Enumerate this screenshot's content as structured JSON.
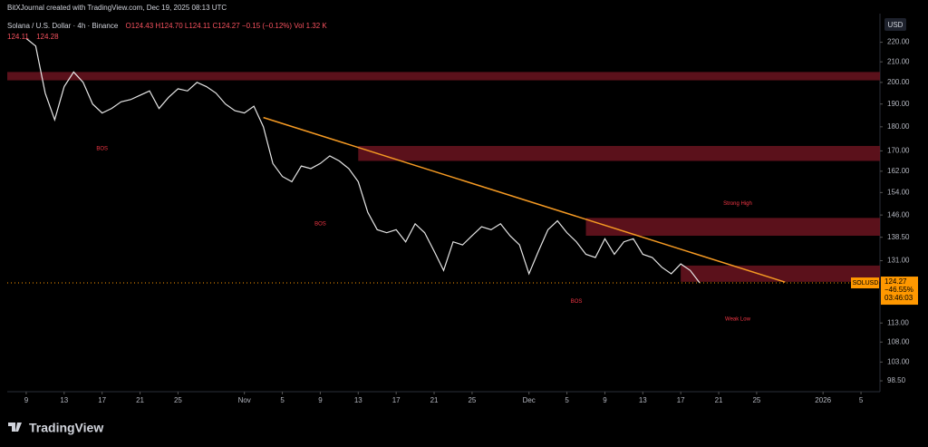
{
  "header": {
    "credit": "BitXJournal created with TradingView.com, Dec 19, 2025 08:13 UTC",
    "symbol": "Solana / U.S. Dollar · 4h · Binance",
    "ohlc": "O124.43 H124.70 L124.11 C124.27 −0.15 (−0.12%) Vol 1.32 K",
    "bid": "124.11",
    "ask": "124.28"
  },
  "footer": {
    "brand": "TradingView"
  },
  "chart_data": {
    "type": "line",
    "currency": "USD",
    "log_scale": true,
    "color": "#e6e6e6",
    "x": [
      0,
      1,
      2,
      3,
      4,
      5,
      6,
      7,
      8,
      9,
      10,
      11,
      12,
      13,
      14,
      15,
      16,
      17,
      18,
      19,
      20,
      21,
      22,
      23,
      24,
      25,
      26,
      27,
      28,
      29,
      30,
      31,
      32,
      33,
      34,
      35,
      36,
      37,
      38,
      39,
      40,
      41,
      42,
      43,
      44,
      45,
      46,
      47,
      48,
      49,
      50,
      51,
      52,
      53,
      54,
      55,
      56,
      57,
      58,
      59,
      60,
      61,
      62,
      63,
      64,
      65,
      66,
      67,
      68,
      69,
      70,
      71
    ],
    "values": [
      222,
      218,
      195,
      183,
      198,
      205,
      200,
      190,
      186,
      188,
      191,
      192,
      194,
      196,
      188,
      193,
      197,
      196,
      200,
      198,
      195,
      190,
      187,
      186,
      189,
      180,
      165,
      160,
      158,
      164,
      163,
      165,
      168,
      166,
      163,
      158,
      147,
      141,
      140,
      141,
      137,
      143,
      140,
      134,
      128,
      137,
      136,
      139,
      142,
      141,
      143,
      139,
      136,
      127,
      134,
      141,
      144,
      140,
      137,
      133,
      132,
      138,
      133,
      137,
      138,
      133,
      132,
      129,
      127,
      130,
      128,
      124.27
    ],
    "xlim": [
      -2,
      90
    ],
    "ylim": [
      96,
      237
    ],
    "xticks": [
      {
        "value": 0,
        "label": "9"
      },
      {
        "value": 4,
        "label": "13"
      },
      {
        "value": 8,
        "label": "17"
      },
      {
        "value": 12,
        "label": "21"
      },
      {
        "value": 16,
        "label": "25"
      },
      {
        "value": 23,
        "label": "Nov"
      },
      {
        "value": 27,
        "label": "5"
      },
      {
        "value": 31,
        "label": "9"
      },
      {
        "value": 35,
        "label": "13"
      },
      {
        "value": 39,
        "label": "17"
      },
      {
        "value": 43,
        "label": "21"
      },
      {
        "value": 47,
        "label": "25"
      },
      {
        "value": 53,
        "label": "Dec"
      },
      {
        "value": 57,
        "label": "5"
      },
      {
        "value": 61,
        "label": "9"
      },
      {
        "value": 65,
        "label": "13"
      },
      {
        "value": 69,
        "label": "17"
      },
      {
        "value": 73,
        "label": "21"
      },
      {
        "value": 77,
        "label": "25"
      },
      {
        "value": 84,
        "label": "2026"
      },
      {
        "value": 88,
        "label": "5"
      }
    ],
    "yticks": [
      {
        "value": 220,
        "label": "220.00"
      },
      {
        "value": 210,
        "label": "210.00"
      },
      {
        "value": 200,
        "label": "200.00"
      },
      {
        "value": 190,
        "label": "190.00"
      },
      {
        "value": 180,
        "label": "180.00"
      },
      {
        "value": 170,
        "label": "170.00"
      },
      {
        "value": 162,
        "label": "162.00"
      },
      {
        "value": 154,
        "label": "154.00"
      },
      {
        "value": 146,
        "label": "146.00"
      },
      {
        "value": 138.5,
        "label": "138.50"
      },
      {
        "value": 131,
        "label": "131.00"
      },
      {
        "value": 113,
        "label": "113.00"
      },
      {
        "value": 108,
        "label": "108.00"
      },
      {
        "value": 103,
        "label": "103.00"
      },
      {
        "value": 98.5,
        "label": "98.50"
      }
    ],
    "last_price": {
      "ticker": "SOLUSD",
      "value": 124.27,
      "change": "−46.55%",
      "countdown": "03:46:03",
      "color": "#ff9800"
    },
    "zones": [
      {
        "x0": -2,
        "low": 201,
        "high": 205
      },
      {
        "x0": 35,
        "low": 166,
        "high": 172
      },
      {
        "x0": 59,
        "low": 139,
        "high": 145
      },
      {
        "x0": 69,
        "low": 124.6,
        "high": 129.5
      }
    ],
    "zone_color": "#6b1420",
    "trendline": {
      "x": [
        25,
        80
      ],
      "values": [
        184,
        124.5
      ],
      "color": "#f59a23"
    },
    "annotations": [
      {
        "text": "BOS",
        "x": 8,
        "y": 171
      },
      {
        "text": "BOS",
        "x": 31,
        "y": 143
      },
      {
        "text": "BOS",
        "x": 58,
        "y": 119
      },
      {
        "text": "Strong High",
        "x": 75,
        "y": 150
      },
      {
        "text": "Weak Low",
        "x": 75,
        "y": 114
      }
    ]
  }
}
